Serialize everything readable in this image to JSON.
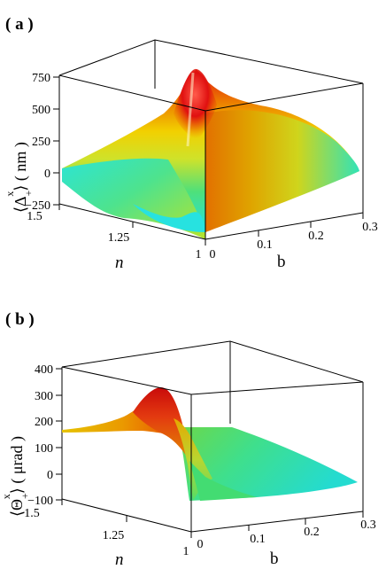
{
  "panels": [
    {
      "label": "( a )",
      "ylabel_text": "⟨Δ",
      "ylabel_sub": "+",
      "ylabel_sup": "x",
      "ylabel_tail": "⟩ ( nm )",
      "n_label": "n",
      "b_label": "b"
    },
    {
      "label": "( b )",
      "ylabel_text": "⟨Θ",
      "ylabel_sub": "+",
      "ylabel_sup": "x",
      "ylabel_tail": "⟩ ( μrad )",
      "n_label": "n",
      "b_label": "b"
    }
  ],
  "chart_data": [
    {
      "type": "surface",
      "panel": "a",
      "zlabel": "⟨Δ+x⟩ ( nm )",
      "xlabel": "b",
      "ylabel": "n",
      "z_ticks": [
        "750",
        "500",
        "250",
        "0",
        "−250"
      ],
      "n_ticks": [
        "1.5",
        "1.25",
        "1"
      ],
      "b_ticks": [
        "0",
        "0.1",
        "0.2",
        "0.3"
      ],
      "zlim": [
        -250,
        750
      ],
      "nlim": [
        1,
        1.5
      ],
      "blim": [
        0,
        0.3
      ],
      "peak": {
        "n": 1.05,
        "b": 0.0,
        "value": 720
      },
      "colormap": "cyan-green-yellow-red"
    },
    {
      "type": "surface",
      "panel": "b",
      "zlabel": "⟨Θ+x⟩ ( μrad )",
      "xlabel": "b",
      "ylabel": "n",
      "z_ticks": [
        "400",
        "300",
        "200",
        "100",
        "0",
        "−100"
      ],
      "n_ticks": [
        "1.5",
        "1.25",
        "1"
      ],
      "b_ticks": [
        "0",
        "0.1",
        "0.2",
        "0.3"
      ],
      "zlim": [
        -100,
        400
      ],
      "nlim": [
        1,
        1.5
      ],
      "blim": [
        0,
        0.3
      ],
      "peak": {
        "n": 1.1,
        "b": 0.0,
        "value": 330
      },
      "colormap": "cyan-green-yellow-red"
    }
  ]
}
